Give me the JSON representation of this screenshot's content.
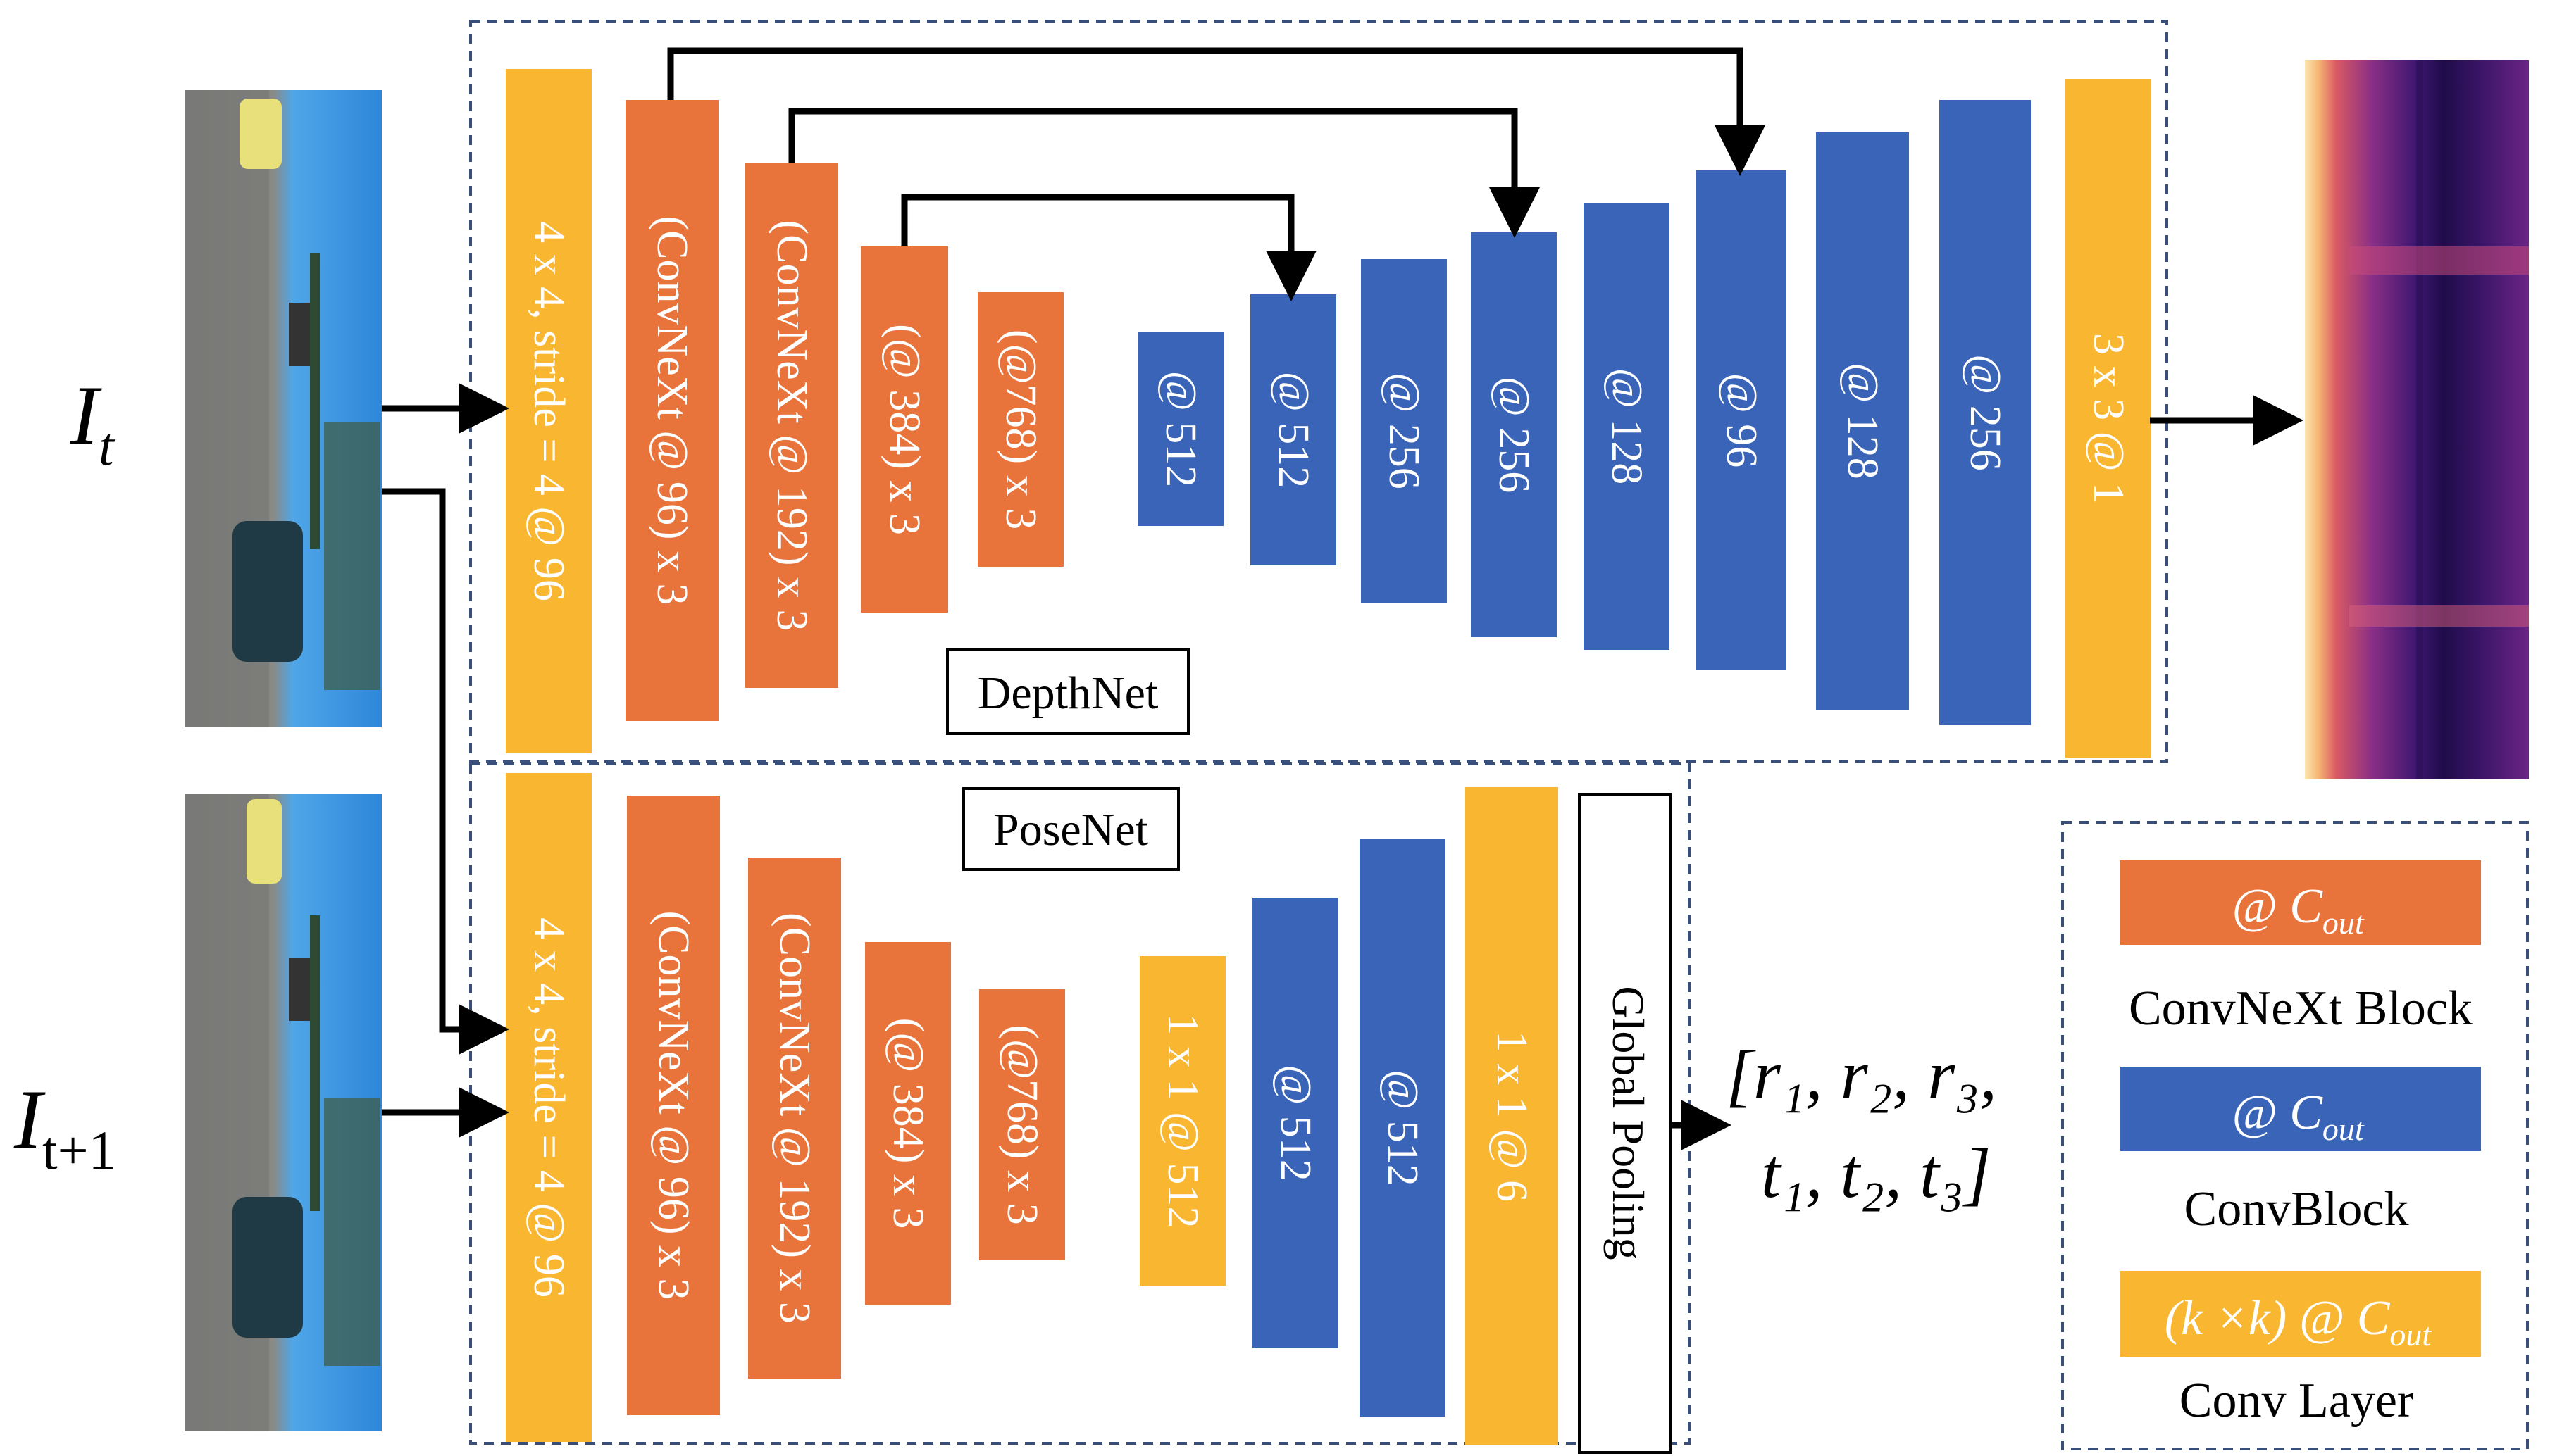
{
  "inputs": {
    "frame_t": "I",
    "frame_t_sub": "t",
    "frame_t1": "I",
    "frame_t1_sub": "t+1"
  },
  "colors": {
    "orange": "#E8743B",
    "blue": "#3A64B8",
    "yellow": "#F9B630",
    "dash": "#3A4E7A"
  },
  "depthnet": {
    "title": "DepthNet",
    "blocks": [
      {
        "label": "4 x 4, stride = 4 @ 96",
        "kind": "conv"
      },
      {
        "label": "(ConvNeXt @ 96) x 3",
        "kind": "convnext"
      },
      {
        "label": "(ConvNeXt @ 192) x 3",
        "kind": "convnext"
      },
      {
        "label": "(@ 384) x 3",
        "kind": "convnext"
      },
      {
        "label": "(@768) x 3",
        "kind": "convnext"
      },
      {
        "label": "@ 512",
        "kind": "convblock"
      },
      {
        "label": "@ 512",
        "kind": "convblock"
      },
      {
        "label": "@ 256",
        "kind": "convblock"
      },
      {
        "label": "@ 256",
        "kind": "convblock"
      },
      {
        "label": "@ 128",
        "kind": "convblock"
      },
      {
        "label": "@ 96",
        "kind": "convblock"
      },
      {
        "label": "@ 128",
        "kind": "convblock"
      },
      {
        "label": "@ 256",
        "kind": "convblock"
      },
      {
        "label": "3 x 3 @ 1",
        "kind": "conv"
      }
    ]
  },
  "posenet": {
    "title": "PoseNet",
    "blocks": [
      {
        "label": "4 x 4, stride = 4 @ 96",
        "kind": "conv"
      },
      {
        "label": "(ConvNeXt @ 96) x 3",
        "kind": "convnext"
      },
      {
        "label": "(ConvNeXt @ 192) x 3",
        "kind": "convnext"
      },
      {
        "label": "(@ 384) x 3",
        "kind": "convnext"
      },
      {
        "label": "(@768) x 3",
        "kind": "convnext"
      },
      {
        "label": "1 x 1 @ 512",
        "kind": "conv"
      },
      {
        "label": "@ 512",
        "kind": "convblock"
      },
      {
        "label": "@ 512",
        "kind": "convblock"
      },
      {
        "label": "1 x 1 @ 6",
        "kind": "conv"
      }
    ],
    "pooling": "Global Pooling",
    "output_line1": "[r₁, r₂, r₃,",
    "output_line2": "t₁, t₂, t₃]"
  },
  "legend": {
    "convnext_chip": "@ C",
    "convnext_chip_sub": "out",
    "convnext_label": "ConvNeXt Block",
    "convblock_chip": "@ C",
    "convblock_chip_sub": "out",
    "convblock_label": "ConvBlock",
    "conv_chip": "(k ×k) @ C",
    "conv_chip_sub": "out",
    "conv_label": "Conv Layer"
  }
}
